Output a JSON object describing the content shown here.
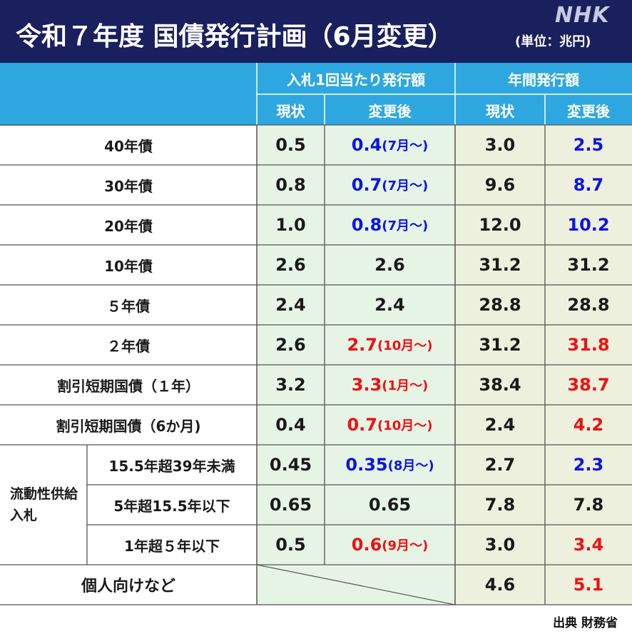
{
  "header": {
    "title": "令和７年度 国債発行計画（6月変更）",
    "unit": "(単位：兆円)",
    "logo": "NHK"
  },
  "table": {
    "group_headers": [
      "入札1回当たり発行額",
      "年間発行額"
    ],
    "sub_headers": [
      "現状",
      "変更後",
      "現状",
      "変更後"
    ],
    "group_label": "流動性供給入札",
    "rows": [
      {
        "label": "40年債",
        "per_now": "0.5",
        "per_after": "0.4",
        "per_after_note": "(7月〜)",
        "per_after_color": "blue",
        "annual_now": "3.0",
        "annual_after": "2.5",
        "annual_after_color": "blue"
      },
      {
        "label": "30年債",
        "per_now": "0.8",
        "per_after": "0.7",
        "per_after_note": "(7月〜)",
        "per_after_color": "blue",
        "annual_now": "9.6",
        "annual_after": "8.7",
        "annual_after_color": "blue"
      },
      {
        "label": "20年債",
        "per_now": "1.0",
        "per_after": "0.8",
        "per_after_note": "(7月〜)",
        "per_after_color": "blue",
        "annual_now": "12.0",
        "annual_after": "10.2",
        "annual_after_color": "blue"
      },
      {
        "label": "10年債",
        "per_now": "2.6",
        "per_after": "2.6",
        "per_after_note": "",
        "per_after_color": "black",
        "annual_now": "31.2",
        "annual_after": "31.2",
        "annual_after_color": "black"
      },
      {
        "label": "５年債",
        "per_now": "2.4",
        "per_after": "2.4",
        "per_after_note": "",
        "per_after_color": "black",
        "annual_now": "28.8",
        "annual_after": "28.8",
        "annual_after_color": "black"
      },
      {
        "label": "２年債",
        "per_now": "2.6",
        "per_after": "2.7",
        "per_after_note": "(10月〜)",
        "per_after_color": "red",
        "annual_now": "31.2",
        "annual_after": "31.8",
        "annual_after_color": "red"
      },
      {
        "label": "割引短期国債（１年）",
        "per_now": "3.2",
        "per_after": "3.3",
        "per_after_note": "(1月〜)",
        "per_after_color": "red",
        "annual_now": "38.4",
        "annual_after": "38.7",
        "annual_after_color": "red"
      },
      {
        "label": "割引短期国債（6か月)",
        "per_now": "0.4",
        "per_after": "0.7",
        "per_after_note": "(10月〜)",
        "per_after_color": "red",
        "annual_now": "2.4",
        "annual_after": "4.2",
        "annual_after_color": "red"
      },
      {
        "label": "15.5年超39年未満",
        "per_now": "0.45",
        "per_after": "0.35",
        "per_after_note": "(8月〜)",
        "per_after_color": "blue",
        "annual_now": "2.7",
        "annual_after": "2.3",
        "annual_after_color": "blue"
      },
      {
        "label": "5年超15.5年以下",
        "per_now": "0.65",
        "per_after": "0.65",
        "per_after_note": "",
        "per_after_color": "black",
        "annual_now": "7.8",
        "annual_after": "7.8",
        "annual_after_color": "black"
      },
      {
        "label": "1年超５年以下",
        "per_now": "0.5",
        "per_after": "0.6",
        "per_after_note": "(9月〜)",
        "per_after_color": "red",
        "annual_now": "3.0",
        "annual_after": "3.4",
        "annual_after_color": "red"
      },
      {
        "label": "個人向けなど",
        "per_now": "",
        "per_after": "",
        "per_after_note": "",
        "per_after_color": "black",
        "annual_now": "4.6",
        "annual_after": "5.1",
        "annual_after_color": "red"
      }
    ]
  },
  "colors": {
    "header_bg": "#1a1f5e",
    "table_header_bg": "#2ea7e0",
    "per_round_bg": "#e6f4e6",
    "annual_bg": "#eef0de",
    "blue": "#0b14e6",
    "red": "#ee1111"
  },
  "footer": {
    "source": "出典 財務省"
  }
}
